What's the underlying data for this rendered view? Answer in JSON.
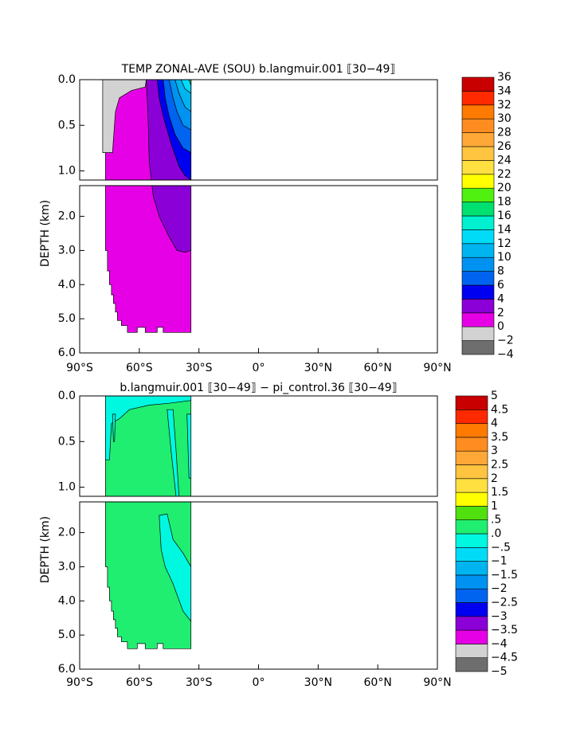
{
  "chart_data": [
    {
      "type": "contour",
      "title": "TEMP ZONAL-AVE (SOU) b.langmuir.001 ⟦30−49⟧",
      "y_label": "DEPTH (km)",
      "xlim": [
        -90,
        90
      ],
      "xticks": [
        {
          "value": -90,
          "label": "90°S"
        },
        {
          "value": -60,
          "label": "60°S"
        },
        {
          "value": -30,
          "label": "30°S"
        },
        {
          "value": 0,
          "label": "0°"
        },
        {
          "value": 30,
          "label": "30°N"
        },
        {
          "value": 60,
          "label": "60°N"
        },
        {
          "value": 90,
          "label": "90°N"
        }
      ],
      "segments": [
        {
          "ylim": [
            0,
            1.1
          ],
          "yticks": [
            {
              "value": 0,
              "label": "0.0"
            },
            {
              "value": 0.5,
              "label": "0.5"
            },
            {
              "value": 1,
              "label": "1.0"
            }
          ]
        },
        {
          "ylim": [
            1.1,
            6
          ],
          "yticks": [
            {
              "value": 2,
              "label": "2.0"
            },
            {
              "value": 3,
              "label": "3.0"
            },
            {
              "value": 4,
              "label": "4.0"
            },
            {
              "value": 5,
              "label": "5.0"
            },
            {
              "value": 6,
              "label": "6.0"
            }
          ]
        }
      ],
      "colorbar": {
        "levels": [
          {
            "value": -4,
            "label": "−4"
          },
          {
            "value": -2,
            "label": "−2"
          },
          0,
          2,
          4,
          6,
          8,
          10,
          12,
          14,
          16,
          18,
          20,
          22,
          24,
          26,
          28,
          30,
          32,
          34,
          36
        ],
        "colors": [
          "#6e6e6e",
          "#d2d2d2",
          "#e600e6",
          "#8c00d8",
          "#0000f0",
          "#0064f0",
          "#0092f0",
          "#00b4f0",
          "#00dcf8",
          "#00f0d0",
          "#00e070",
          "#50f010",
          "#ffff00",
          "#ffe040",
          "#ffc440",
          "#ffa838",
          "#ff8c20",
          "#ff7a00",
          "#ff2a00",
          "#c80000"
        ]
      }
    },
    {
      "type": "contour",
      "title": "b.langmuir.001 ⟦30−49⟧ − pi_control.36 ⟦30−49⟧",
      "y_label": "DEPTH (km)",
      "xlim": [
        -90,
        90
      ],
      "xticks": [
        {
          "value": -90,
          "label": "90°S"
        },
        {
          "value": -60,
          "label": "60°S"
        },
        {
          "value": -30,
          "label": "30°S"
        },
        {
          "value": 0,
          "label": "0°"
        },
        {
          "value": 30,
          "label": "30°N"
        },
        {
          "value": 60,
          "label": "60°N"
        },
        {
          "value": 90,
          "label": "90°N"
        }
      ],
      "segments": [
        {
          "ylim": [
            0,
            1.1
          ],
          "yticks": [
            {
              "value": 0,
              "label": "0.0"
            },
            {
              "value": 0.5,
              "label": "0.5"
            },
            {
              "value": 1,
              "label": "1.0"
            }
          ]
        },
        {
          "ylim": [
            1.1,
            6
          ],
          "yticks": [
            {
              "value": 2,
              "label": "2.0"
            },
            {
              "value": 3,
              "label": "3.0"
            },
            {
              "value": 4,
              "label": "4.0"
            },
            {
              "value": 5,
              "label": "5.0"
            },
            {
              "value": 6,
              "label": "6.0"
            }
          ]
        }
      ],
      "colorbar": {
        "levels": [
          {
            "value": -5,
            "label": "−5"
          },
          {
            "value": -4.5,
            "label": "−4.5"
          },
          {
            "value": -4,
            "label": "−4"
          },
          {
            "value": -3.5,
            "label": "−3.5"
          },
          {
            "value": -3,
            "label": "−3"
          },
          {
            "value": -2.5,
            "label": "−2.5"
          },
          {
            "value": -2,
            "label": "−2"
          },
          {
            "value": -1.5,
            "label": "−1.5"
          },
          {
            "value": -1,
            "label": "−1"
          },
          {
            "value": -0.5,
            "label": "−.5"
          },
          {
            "value": 0,
            "label": ".0"
          },
          {
            "value": 0.5,
            "label": ".5"
          },
          1,
          1.5,
          2,
          2.5,
          3,
          3.5,
          4,
          4.5,
          5
        ],
        "colors": [
          "#6e6e6e",
          "#d2d2d2",
          "#e600e6",
          "#8c00d8",
          "#0000f0",
          "#0064f0",
          "#0092f0",
          "#00b4f0",
          "#00dcf8",
          "#00f8e0",
          "#20ee70",
          "#50e010",
          "#ffff00",
          "#ffe040",
          "#ffc440",
          "#ffa838",
          "#ff8c20",
          "#ff7a00",
          "#ff2a00",
          "#c80000"
        ]
      }
    }
  ]
}
